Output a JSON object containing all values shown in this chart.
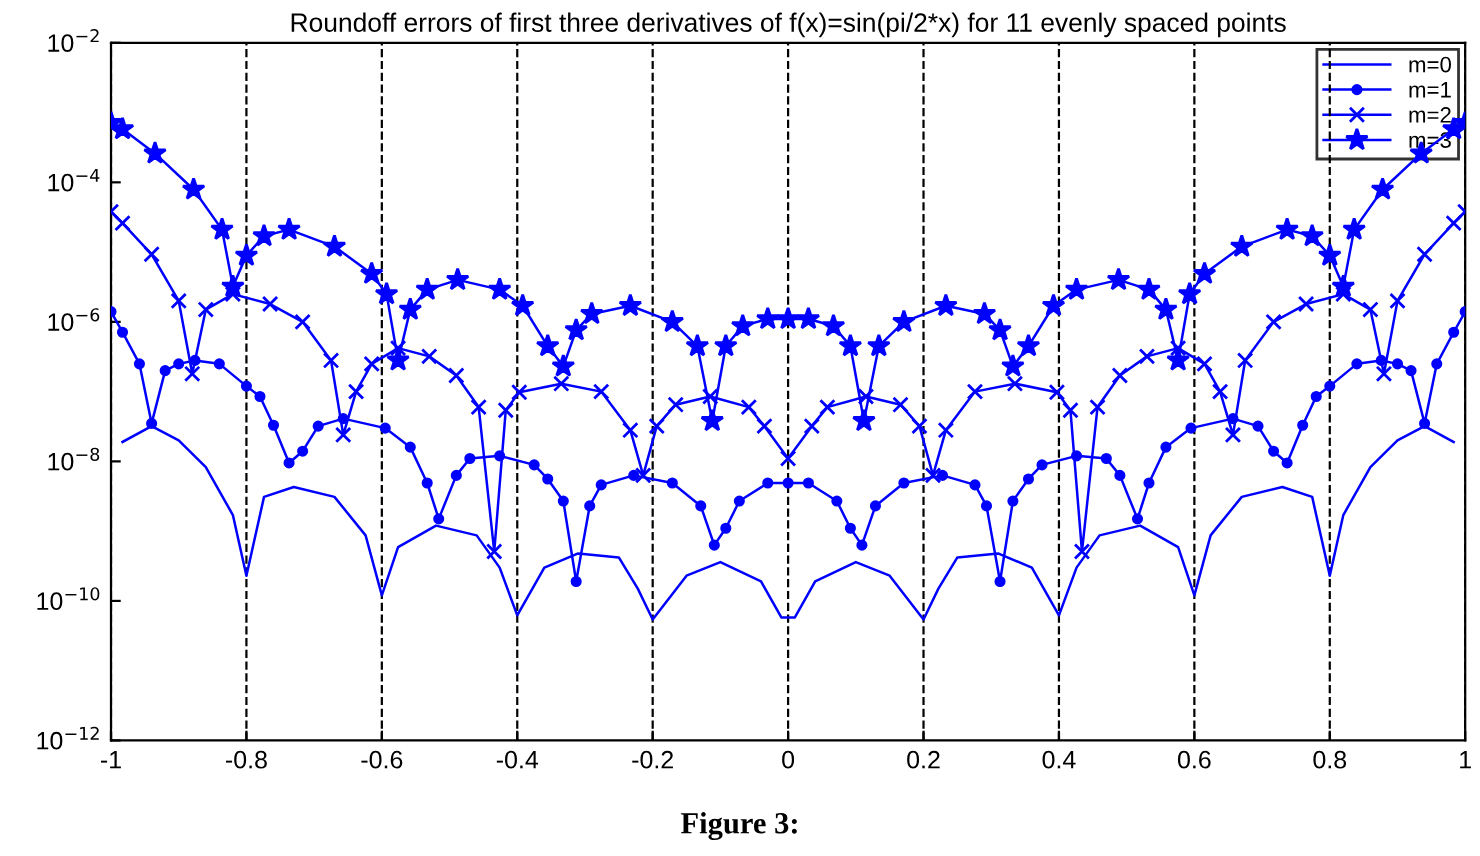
{
  "chart_data": {
    "type": "line",
    "title": "Roundoff errors of first three derivatives of f(x)=sin(pi/2*x) for 11 evenly spaced points",
    "annotations": [
      "Figure 3:"
    ],
    "xlim": [
      -1,
      1
    ],
    "xticks": [
      -1,
      -0.8,
      -0.6,
      -0.4,
      -0.2,
      0,
      0.2,
      0.4,
      0.6,
      0.8,
      1
    ],
    "log": true,
    "ylim": [
      1e-12,
      0.01
    ],
    "yticks": [
      {
        "value": 0.01,
        "label": "10$^{−2}$"
      },
      {
        "value": 0.0001,
        "label": "10$^{−4}$"
      },
      {
        "value": 1e-06,
        "label": "10$^{−6}$"
      },
      {
        "value": 1e-08,
        "label": "10$^{−8}$"
      },
      {
        "value": 1e-10,
        "label": "10$^{−10}$"
      },
      {
        "value": 1e-12,
        "label": "10$^{−12}$"
      }
    ],
    "grid": "x",
    "legend": "top right",
    "line_style": "solid",
    "series": [
      {
        "name": "m=0",
        "color": "#0000ff",
        "marker": "none",
        "x": [
          -0.983,
          -0.94,
          -0.9,
          -0.86,
          -0.82,
          -0.8,
          -0.774,
          -0.73,
          -0.67,
          -0.624,
          -0.6,
          -0.576,
          -0.52,
          -0.46,
          -0.426,
          -0.4,
          -0.36,
          -0.31,
          -0.25,
          -0.222,
          -0.2,
          -0.15,
          -0.1,
          -0.04,
          -0.01,
          0.01,
          0.04,
          0.1,
          0.15,
          0.2,
          0.222,
          0.25,
          0.31,
          0.36,
          0.4,
          0.426,
          0.46,
          0.52,
          0.576,
          0.6,
          0.624,
          0.67,
          0.73,
          0.774,
          0.8,
          0.82,
          0.86,
          0.9,
          0.94,
          0.983
        ],
        "values": [
          1.9e-08,
          3.2e-08,
          2e-08,
          8.3e-09,
          1.7e-09,
          2.3e-10,
          3.1e-09,
          4.3e-09,
          3.1e-09,
          8.7e-10,
          1.2e-10,
          5.9e-10,
          1.2e-09,
          8.7e-10,
          3e-10,
          6.2e-11,
          3e-10,
          4.8e-10,
          4.2e-10,
          1.5e-10,
          5.4e-11,
          2.3e-10,
          3.6e-10,
          1.9e-10,
          5.8e-11,
          5.8e-11,
          1.9e-10,
          3.6e-10,
          2.3e-10,
          5.4e-11,
          1.5e-10,
          4.2e-10,
          4.8e-10,
          3e-10,
          6.2e-11,
          3e-10,
          8.7e-10,
          1.2e-09,
          5.9e-10,
          1.2e-10,
          8.7e-10,
          3.1e-09,
          4.3e-09,
          3.1e-09,
          2.3e-10,
          1.7e-09,
          8.3e-09,
          2e-08,
          3.2e-08,
          1.9e-08
        ]
      },
      {
        "name": "m=1",
        "color": "#0000ff",
        "marker": "circle",
        "x": [
          -1,
          -0.983,
          -0.958,
          -0.94,
          -0.92,
          -0.9,
          -0.876,
          -0.84,
          -0.8,
          -0.78,
          -0.76,
          -0.737,
          -0.717,
          -0.694,
          -0.657,
          -0.595,
          -0.558,
          -0.533,
          -0.516,
          -0.49,
          -0.47,
          -0.426,
          -0.375,
          -0.355,
          -0.332,
          -0.313,
          -0.293,
          -0.276,
          -0.228,
          -0.171,
          -0.129,
          -0.109,
          -0.092,
          -0.072,
          -0.03,
          0,
          0.03,
          0.072,
          0.092,
          0.109,
          0.129,
          0.171,
          0.228,
          0.276,
          0.293,
          0.313,
          0.332,
          0.355,
          0.375,
          0.426,
          0.47,
          0.49,
          0.516,
          0.533,
          0.558,
          0.595,
          0.657,
          0.694,
          0.717,
          0.737,
          0.76,
          0.78,
          0.8,
          0.84,
          0.876,
          0.9,
          0.92,
          0.94,
          0.958,
          0.983,
          1
        ],
        "values": [
          1.4e-06,
          7.1e-07,
          2.5e-07,
          3.5e-08,
          2e-07,
          2.5e-07,
          2.8e-07,
          2.5e-07,
          1.2e-07,
          8.5e-08,
          3.3e-08,
          9.5e-09,
          1.4e-08,
          3.2e-08,
          4.1e-08,
          3e-08,
          1.6e-08,
          4.9e-09,
          1.5e-09,
          6.3e-09,
          1.1e-08,
          1.2e-08,
          8.9e-09,
          5.6e-09,
          2.7e-09,
          1.9e-10,
          2.3e-09,
          4.6e-09,
          6.3e-09,
          4.9e-09,
          2.3e-09,
          6.3e-10,
          1.1e-09,
          2.7e-09,
          4.9e-09,
          4.9e-09,
          4.9e-09,
          2.7e-09,
          1.1e-09,
          6.3e-10,
          2.3e-09,
          4.9e-09,
          6.3e-09,
          4.6e-09,
          2.3e-09,
          1.9e-10,
          2.7e-09,
          5.6e-09,
          8.9e-09,
          1.2e-08,
          1.1e-08,
          6.3e-09,
          1.5e-09,
          4.9e-09,
          1.6e-08,
          3e-08,
          4.1e-08,
          3.2e-08,
          1.4e-08,
          9.5e-09,
          3.3e-08,
          8.5e-08,
          1.2e-07,
          2.5e-07,
          2.8e-07,
          2.5e-07,
          2e-07,
          3.5e-08,
          2.5e-07,
          7.1e-07,
          1.4e-06
        ]
      },
      {
        "name": "m=2",
        "color": "#0000ff",
        "marker": "cross",
        "x": [
          -1,
          -0.983,
          -0.94,
          -0.9,
          -0.88,
          -0.86,
          -0.82,
          -0.765,
          -0.717,
          -0.675,
          -0.657,
          -0.638,
          -0.615,
          -0.576,
          -0.53,
          -0.49,
          -0.457,
          -0.434,
          -0.417,
          -0.397,
          -0.335,
          -0.276,
          -0.233,
          -0.214,
          -0.194,
          -0.166,
          -0.115,
          -0.058,
          -0.035,
          0,
          0.035,
          0.058,
          0.115,
          0.166,
          0.194,
          0.214,
          0.233,
          0.276,
          0.335,
          0.397,
          0.417,
          0.434,
          0.457,
          0.49,
          0.53,
          0.576,
          0.615,
          0.638,
          0.657,
          0.675,
          0.717,
          0.765,
          0.82,
          0.86,
          0.88,
          0.9,
          0.94,
          0.983,
          1
        ],
        "values": [
          3.8e-05,
          2.6e-05,
          9.3e-06,
          2e-06,
          1.8e-07,
          1.5e-06,
          2.5e-06,
          1.8e-06,
          1e-06,
          2.8e-07,
          2.4e-08,
          1e-07,
          2.5e-07,
          4.2e-07,
          3.2e-07,
          1.7e-07,
          6e-08,
          5.1e-10,
          5.4e-08,
          9.8e-08,
          1.3e-07,
          1e-07,
          2.8e-08,
          6.3e-09,
          3.2e-08,
          6.5e-08,
          8.5e-08,
          6e-08,
          3.2e-08,
          1.1e-08,
          3.2e-08,
          6e-08,
          8.5e-08,
          6.5e-08,
          3.2e-08,
          6.3e-09,
          2.8e-08,
          1e-07,
          1.3e-07,
          9.8e-08,
          5.4e-08,
          5.1e-10,
          6e-08,
          1.7e-07,
          3.2e-07,
          4.2e-07,
          2.5e-07,
          1e-07,
          2.4e-08,
          2.8e-07,
          1e-06,
          1.8e-06,
          2.5e-06,
          1.5e-06,
          1.8e-07,
          2e-06,
          9.3e-06,
          2.6e-05,
          3.8e-05
        ]
      },
      {
        "name": "m=3",
        "color": "#0000ff",
        "marker": "star",
        "x": [
          -1,
          -0.983,
          -0.935,
          -0.878,
          -0.836,
          -0.82,
          -0.8,
          -0.774,
          -0.737,
          -0.67,
          -0.615,
          -0.593,
          -0.576,
          -0.558,
          -0.533,
          -0.488,
          -0.426,
          -0.392,
          -0.355,
          -0.332,
          -0.313,
          -0.29,
          -0.233,
          -0.171,
          -0.134,
          -0.112,
          -0.092,
          -0.067,
          -0.03,
          0,
          0.03,
          0.067,
          0.092,
          0.112,
          0.134,
          0.171,
          0.233,
          0.29,
          0.313,
          0.332,
          0.355,
          0.392,
          0.426,
          0.488,
          0.533,
          0.558,
          0.576,
          0.593,
          0.615,
          0.67,
          0.737,
          0.774,
          0.8,
          0.82,
          0.836,
          0.878,
          0.935,
          0.983,
          1
        ],
        "values": [
          0.00071,
          0.00058,
          0.00026,
          7.9e-05,
          2.1e-05,
          3.2e-06,
          8.9e-06,
          1.7e-05,
          2.1e-05,
          1.2e-05,
          4.9e-06,
          2.5e-06,
          2.8e-07,
          1.5e-06,
          2.9e-06,
          4e-06,
          2.9e-06,
          1.7e-06,
          4.5e-07,
          2.3e-07,
          7.6e-07,
          1.3e-06,
          1.7e-06,
          1e-06,
          4.5e-07,
          3.8e-08,
          4.5e-07,
          8.7e-07,
          1.1e-06,
          1.1e-06,
          1.1e-06,
          8.7e-07,
          4.5e-07,
          3.8e-08,
          4.5e-07,
          1e-06,
          1.7e-06,
          1.3e-06,
          7.6e-07,
          2.3e-07,
          4.5e-07,
          1.7e-06,
          2.9e-06,
          4e-06,
          2.9e-06,
          1.5e-06,
          2.8e-07,
          2.5e-06,
          4.9e-06,
          1.2e-05,
          2.1e-05,
          1.7e-05,
          8.9e-06,
          3.2e-06,
          2.1e-05,
          7.9e-05,
          0.00026,
          0.00058,
          0.00071
        ]
      }
    ]
  }
}
